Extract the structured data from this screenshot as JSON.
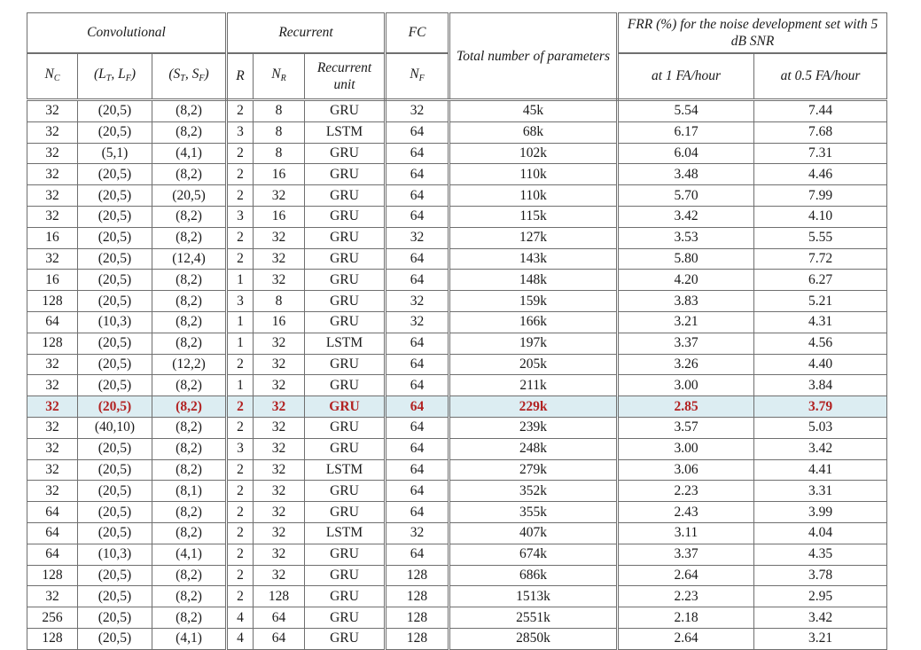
{
  "header": {
    "convolutional": "Convolutional",
    "recurrent": "Recurrent",
    "fc": "FC",
    "total_params": "Total number of parameters",
    "frr": "FRR (%) for the noise development set with 5 dB SNR",
    "nc": "N",
    "nc_sub": "C",
    "lt_lf": "(L",
    "lt_lf_a": "T",
    "lt_lf_b": ", L",
    "lt_lf_c": "F",
    "lt_lf_d": ")",
    "st_sf": "(S",
    "st_sf_a": "T",
    "st_sf_b": ", S",
    "st_sf_c": "F",
    "st_sf_d": ")",
    "r": "R",
    "nr": "N",
    "nr_sub": "R",
    "rec_unit": "Recurrent unit",
    "nf": "N",
    "nf_sub": "F",
    "at1": "at 1 FA/hour",
    "at05": "at 0.5 FA/hour"
  },
  "highlight_color": "#b22222",
  "highlight_bg": "#dcedf2",
  "rows": [
    [
      "32",
      "(20,5)",
      "(8,2)",
      "2",
      "8",
      "GRU",
      "32",
      "45k",
      "5.54",
      "7.44"
    ],
    [
      "32",
      "(20,5)",
      "(8,2)",
      "3",
      "8",
      "LSTM",
      "64",
      "68k",
      "6.17",
      "7.68"
    ],
    [
      "32",
      "(5,1)",
      "(4,1)",
      "2",
      "8",
      "GRU",
      "64",
      "102k",
      "6.04",
      "7.31"
    ],
    [
      "32",
      "(20,5)",
      "(8,2)",
      "2",
      "16",
      "GRU",
      "64",
      "110k",
      "3.48",
      "4.46"
    ],
    [
      "32",
      "(20,5)",
      "(20,5)",
      "2",
      "32",
      "GRU",
      "64",
      "110k",
      "5.70",
      "7.99"
    ],
    [
      "32",
      "(20,5)",
      "(8,2)",
      "3",
      "16",
      "GRU",
      "64",
      "115k",
      "3.42",
      "4.10"
    ],
    [
      "16",
      "(20,5)",
      "(8,2)",
      "2",
      "32",
      "GRU",
      "32",
      "127k",
      "3.53",
      "5.55"
    ],
    [
      "32",
      "(20,5)",
      "(12,4)",
      "2",
      "32",
      "GRU",
      "64",
      "143k",
      "5.80",
      "7.72"
    ],
    [
      "16",
      "(20,5)",
      "(8,2)",
      "1",
      "32",
      "GRU",
      "64",
      "148k",
      "4.20",
      "6.27"
    ],
    [
      "128",
      "(20,5)",
      "(8,2)",
      "3",
      "8",
      "GRU",
      "32",
      "159k",
      "3.83",
      "5.21"
    ],
    [
      "64",
      "(10,3)",
      "(8,2)",
      "1",
      "16",
      "GRU",
      "32",
      "166k",
      "3.21",
      "4.31"
    ],
    [
      "128",
      "(20,5)",
      "(8,2)",
      "1",
      "32",
      "LSTM",
      "64",
      "197k",
      "3.37",
      "4.56"
    ],
    [
      "32",
      "(20,5)",
      "(12,2)",
      "2",
      "32",
      "GRU",
      "64",
      "205k",
      "3.26",
      "4.40"
    ],
    [
      "32",
      "(20,5)",
      "(8,2)",
      "1",
      "32",
      "GRU",
      "64",
      "211k",
      "3.00",
      "3.84"
    ],
    [
      "32",
      "(20,5)",
      "(8,2)",
      "2",
      "32",
      "GRU",
      "64",
      "229k",
      "2.85",
      "3.79"
    ],
    [
      "32",
      "(40,10)",
      "(8,2)",
      "2",
      "32",
      "GRU",
      "64",
      "239k",
      "3.57",
      "5.03"
    ],
    [
      "32",
      "(20,5)",
      "(8,2)",
      "3",
      "32",
      "GRU",
      "64",
      "248k",
      "3.00",
      "3.42"
    ],
    [
      "32",
      "(20,5)",
      "(8,2)",
      "2",
      "32",
      "LSTM",
      "64",
      "279k",
      "3.06",
      "4.41"
    ],
    [
      "32",
      "(20,5)",
      "(8,1)",
      "2",
      "32",
      "GRU",
      "64",
      "352k",
      "2.23",
      "3.31"
    ],
    [
      "64",
      "(20,5)",
      "(8,2)",
      "2",
      "32",
      "GRU",
      "64",
      "355k",
      "2.43",
      "3.99"
    ],
    [
      "64",
      "(20,5)",
      "(8,2)",
      "2",
      "32",
      "LSTM",
      "32",
      "407k",
      "3.11",
      "4.04"
    ],
    [
      "64",
      "(10,3)",
      "(4,1)",
      "2",
      "32",
      "GRU",
      "64",
      "674k",
      "3.37",
      "4.35"
    ],
    [
      "128",
      "(20,5)",
      "(8,2)",
      "2",
      "32",
      "GRU",
      "128",
      "686k",
      "2.64",
      "3.78"
    ],
    [
      "32",
      "(20,5)",
      "(8,2)",
      "2",
      "128",
      "GRU",
      "128",
      "1513k",
      "2.23",
      "2.95"
    ],
    [
      "256",
      "(20,5)",
      "(8,2)",
      "4",
      "64",
      "GRU",
      "128",
      "2551k",
      "2.18",
      "3.42"
    ],
    [
      "128",
      "(20,5)",
      "(4,1)",
      "4",
      "64",
      "GRU",
      "128",
      "2850k",
      "2.64",
      "3.21"
    ]
  ],
  "highlight_row": 14
}
